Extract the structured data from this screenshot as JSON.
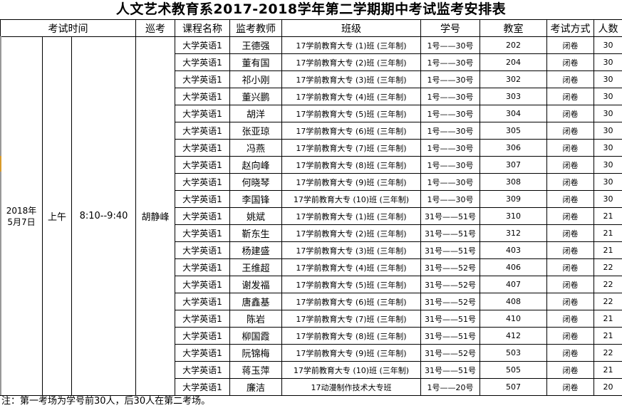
{
  "title": "人文艺术教育系2017-2018学年第二学期期中考试监考安排表",
  "headers": {
    "exam_time": "考试时间",
    "patrol": "巡考",
    "course": "课程名称",
    "proctor": "监考教师",
    "class": "班级",
    "student_no": "学号",
    "room": "教室",
    "exam_mode": "考试方式",
    "count": "人数"
  },
  "date": "2018年\n5月7日",
  "session": "上午",
  "time": "8:10--9:40",
  "patrol_name": "胡静峰",
  "rows": [
    {
      "course": "大学英语1",
      "proctor": "王德强",
      "class": "17学前教育大专 (1)班 (三年制)",
      "student_no": "1号——30号",
      "room": "202",
      "mode": "闭卷",
      "count": "30"
    },
    {
      "course": "大学英语1",
      "proctor": "董有国",
      "class": "17学前教育大专 (2)班 (三年制)",
      "student_no": "1号——30号",
      "room": "204",
      "mode": "闭卷",
      "count": "30"
    },
    {
      "course": "大学英语1",
      "proctor": "祁小刚",
      "class": "17学前教育大专 (3)班 (三年制)",
      "student_no": "1号——30号",
      "room": "302",
      "mode": "闭卷",
      "count": "30"
    },
    {
      "course": "大学英语1",
      "proctor": "董兴鹏",
      "class": "17学前教育大专 (4)班 (三年制)",
      "student_no": "1号——30号",
      "room": "303",
      "mode": "闭卷",
      "count": "30"
    },
    {
      "course": "大学英语1",
      "proctor": "胡洋",
      "class": "17学前教育大专 (5)班 (三年制)",
      "student_no": "1号——30号",
      "room": "304",
      "mode": "闭卷",
      "count": "30"
    },
    {
      "course": "大学英语1",
      "proctor": "张亚琼",
      "class": "17学前教育大专 (6)班 (三年制)",
      "student_no": "1号——30号",
      "room": "305",
      "mode": "闭卷",
      "count": "30"
    },
    {
      "course": "大学英语1",
      "proctor": "冯燕",
      "class": "17学前教育大专 (7)班 (三年制)",
      "student_no": "1号——30号",
      "room": "306",
      "mode": "闭卷",
      "count": "30"
    },
    {
      "course": "大学英语1",
      "proctor": "赵向峰",
      "class": "17学前教育大专 (8)班 (三年制)",
      "student_no": "1号——30号",
      "room": "307",
      "mode": "闭卷",
      "count": "30"
    },
    {
      "course": "大学英语1",
      "proctor": "何晓琴",
      "class": "17学前教育大专 (9)班 (三年制)",
      "student_no": "1号——30号",
      "room": "308",
      "mode": "闭卷",
      "count": "30"
    },
    {
      "course": "大学英语1",
      "proctor": "李国锋",
      "class": "17学前教育大专 (10)班 (三年制)",
      "student_no": "1号——30号",
      "room": "309",
      "mode": "闭卷",
      "count": "30"
    },
    {
      "course": "大学英语1",
      "proctor": "姚斌",
      "class": "17学前教育大专 (1)班 (三年制)",
      "student_no": "31号——51号",
      "room": "310",
      "mode": "闭卷",
      "count": "21"
    },
    {
      "course": "大学英语1",
      "proctor": "靳东生",
      "class": "17学前教育大专 (2)班 (三年制)",
      "student_no": "31号——51号",
      "room": "312",
      "mode": "闭卷",
      "count": "21"
    },
    {
      "course": "大学英语1",
      "proctor": "杨建盛",
      "class": "17学前教育大专 (3)班 (三年制)",
      "student_no": "31号——51号",
      "room": "403",
      "mode": "闭卷",
      "count": "21"
    },
    {
      "course": "大学英语1",
      "proctor": "王维超",
      "class": "17学前教育大专 (4)班 (三年制)",
      "student_no": "31号——52号",
      "room": "406",
      "mode": "闭卷",
      "count": "22"
    },
    {
      "course": "大学英语1",
      "proctor": "谢发福",
      "class": "17学前教育大专 (5)班 (三年制)",
      "student_no": "31号——52号",
      "room": "407",
      "mode": "闭卷",
      "count": "22"
    },
    {
      "course": "大学英语1",
      "proctor": "唐鑫基",
      "class": "17学前教育大专 (6)班 (三年制)",
      "student_no": "31号——52号",
      "room": "408",
      "mode": "闭卷",
      "count": "22"
    },
    {
      "course": "大学英语1",
      "proctor": "陈岩",
      "class": "17学前教育大专 (7)班 (三年制)",
      "student_no": "31号——51号",
      "room": "410",
      "mode": "闭卷",
      "count": "21"
    },
    {
      "course": "大学英语1",
      "proctor": "柳国霞",
      "class": "17学前教育大专 (8)班 (三年制)",
      "student_no": "31号——51号",
      "room": "412",
      "mode": "闭卷",
      "count": "21"
    },
    {
      "course": "大学英语1",
      "proctor": "阮锦梅",
      "class": "17学前教育大专 (9)班 (三年制)",
      "student_no": "31号——52号",
      "room": "503",
      "mode": "闭卷",
      "count": "22"
    },
    {
      "course": "大学英语1",
      "proctor": "蒋玉萍",
      "class": "17学前教育大专 (10)班 (三年制)",
      "student_no": "31号——51号",
      "room": "505",
      "mode": "闭卷",
      "count": "21"
    },
    {
      "course": "大学英语1",
      "proctor": "廉洁",
      "class": "17动漫制作技术大专班",
      "student_no": "1号——20号",
      "room": "507",
      "mode": "闭卷",
      "count": "20"
    }
  ],
  "note": "注：第一考场为学号前30人，后30人在第二考场。"
}
